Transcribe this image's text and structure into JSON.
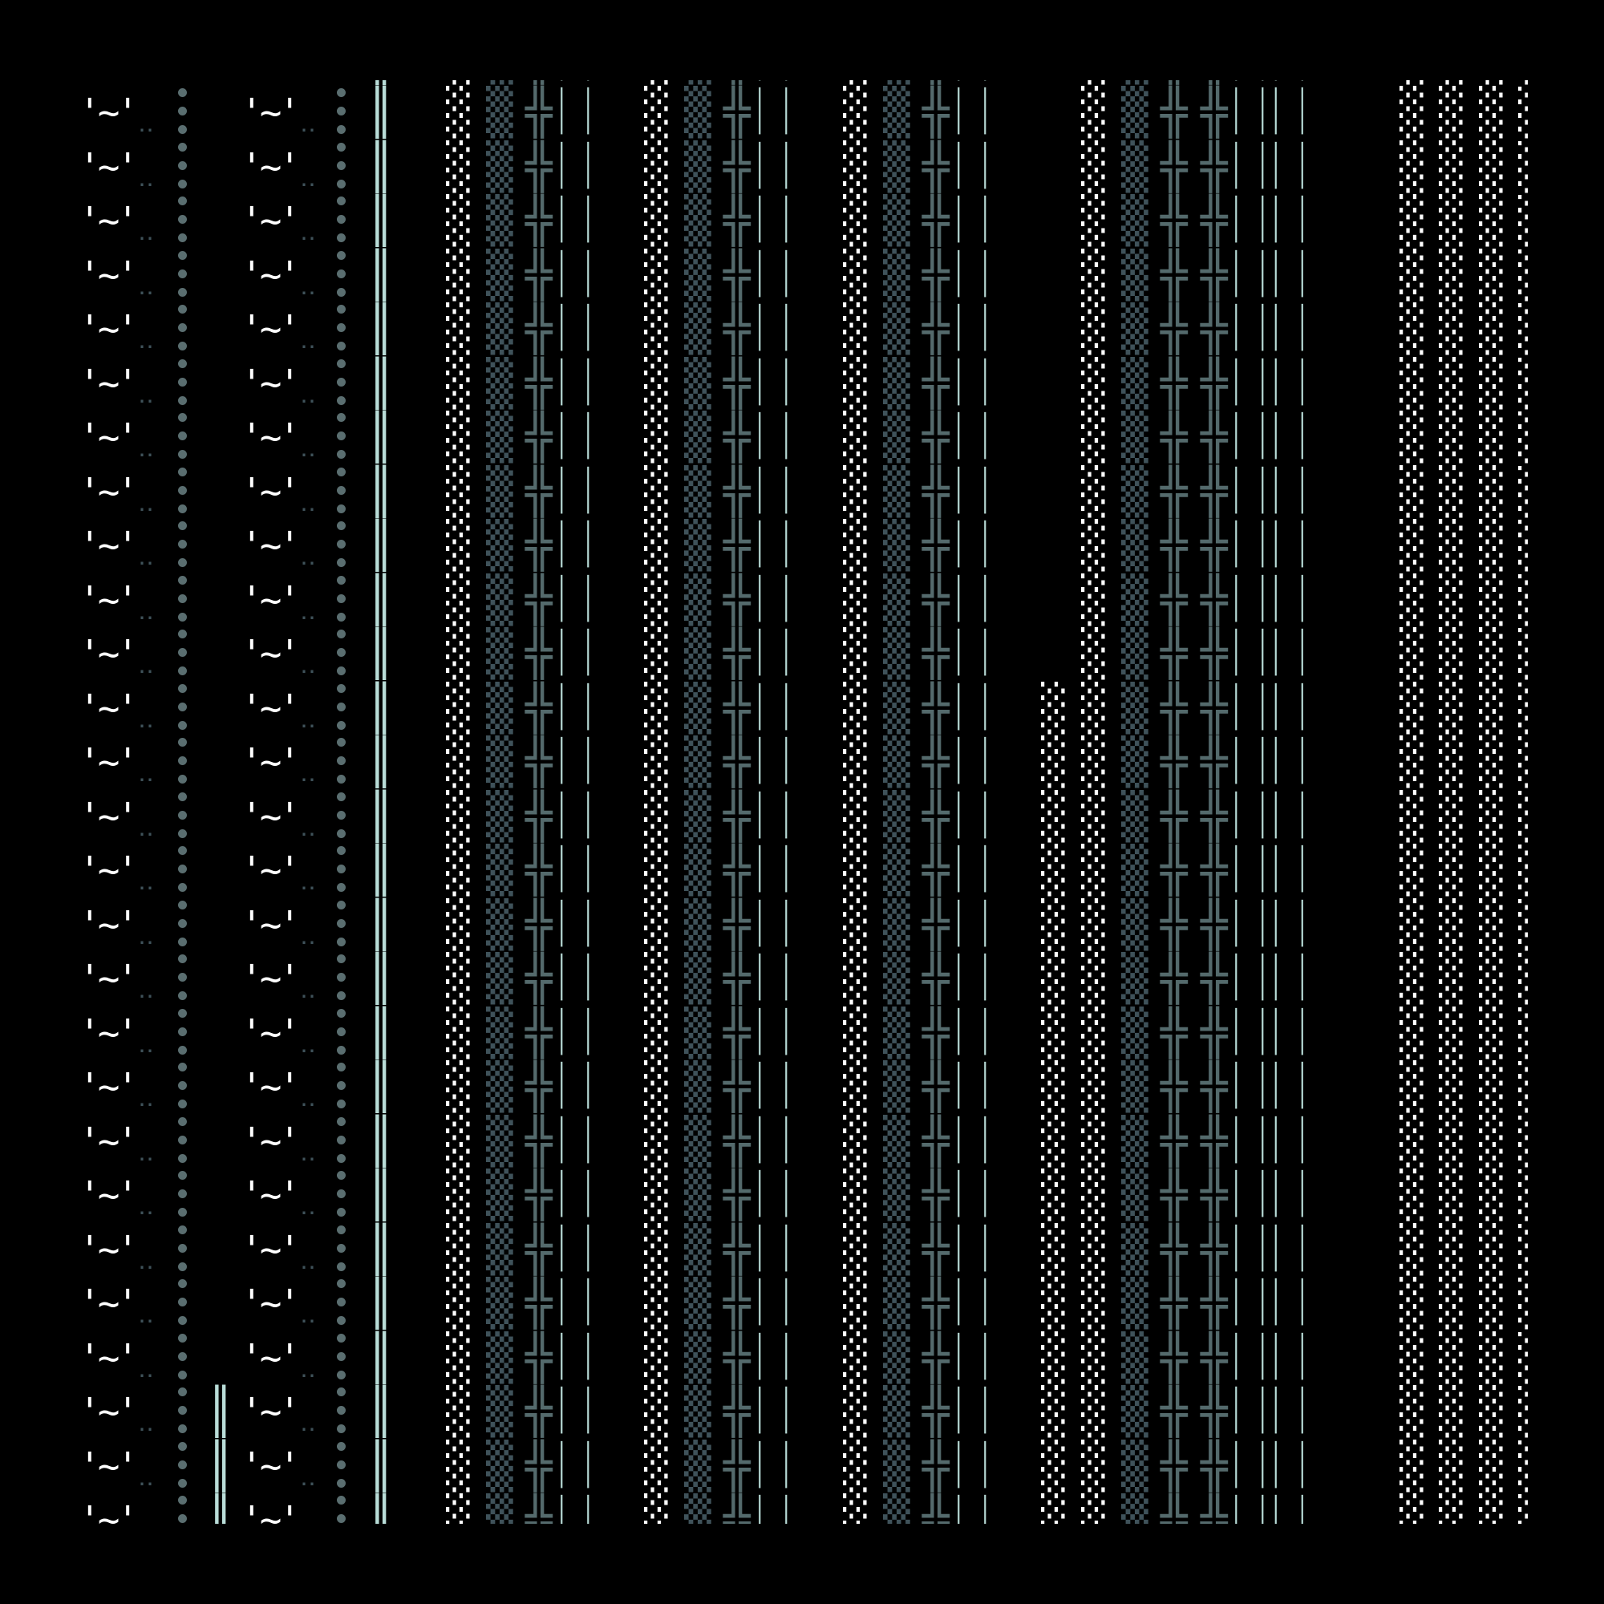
{
  "colors": {
    "background": "#000000",
    "bright": "#ffffff",
    "dim_shade": "#3f525a",
    "dot_gray": "#5a6e70",
    "pale_cyan": "#b9ddd8",
    "cross_gray": "#546a6c"
  },
  "glyphs": {
    "face": "'~'",
    "pair_dots": "‥",
    "triple_dots": "⁝",
    "double_bar": "║",
    "light_shade": "░",
    "medium_shade": "▒",
    "double_cross": "╬",
    "bar": "│"
  },
  "row_count": 28
}
